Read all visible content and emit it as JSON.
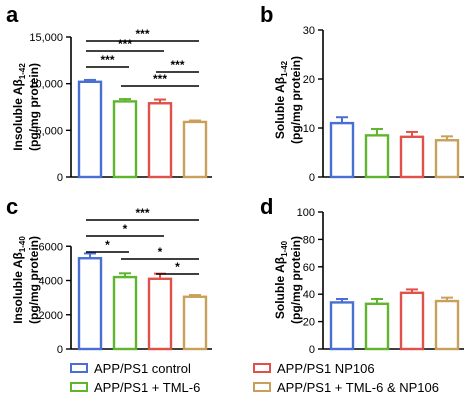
{
  "chart_data": [
    {
      "panel": "a",
      "type": "bar",
      "ylabel_line1_pre": "Insoluble Aβ",
      "ylabel_line1_sub": "1-42",
      "ylabel_line2": "(pg/mg protein)",
      "ylim": [
        0,
        15000
      ],
      "yticks": [
        "0",
        "5,000",
        "10,000",
        "15,000"
      ],
      "ytick_values": [
        0,
        5000,
        10000,
        15000
      ],
      "values": [
        10200,
        8100,
        7900,
        5900
      ],
      "errors": [
        200,
        250,
        400,
        150
      ],
      "significance": [
        {
          "from": 0,
          "to": 3,
          "label": "***"
        },
        {
          "from": 0,
          "to": 2,
          "label": "***"
        },
        {
          "from": 0,
          "to": 1,
          "label": "***"
        },
        {
          "from": 1,
          "to": 3,
          "label": "***"
        },
        {
          "from": 2,
          "to": 3,
          "label": "***"
        }
      ]
    },
    {
      "panel": "b",
      "type": "bar",
      "ylabel_line1_pre": "Soluble Aβ",
      "ylabel_line1_sub": "1-42",
      "ylabel_line2": "(pg/mg protein)",
      "ylim": [
        0,
        30
      ],
      "yticks": [
        "0",
        "10",
        "20",
        "30"
      ],
      "ytick_values": [
        0,
        10,
        20,
        30
      ],
      "values": [
        11,
        8.5,
        8.2,
        7.5
      ],
      "errors": [
        1.2,
        1.3,
        1.0,
        0.8
      ],
      "significance": []
    },
    {
      "panel": "c",
      "type": "bar",
      "ylabel_line1_pre": "Insoluble Aβ",
      "ylabel_line1_sub": "1-40",
      "ylabel_line2": "(pg/mg protein)",
      "ylim": [
        0,
        8000
      ],
      "yticks": [
        "0",
        "2000",
        "4000",
        "6000"
      ],
      "ytick_values": [
        0,
        2000,
        4000,
        6000
      ],
      "values": [
        5300,
        4200,
        4100,
        3050
      ],
      "errors": [
        280,
        220,
        300,
        100
      ],
      "significance": [
        {
          "from": 0,
          "to": 3,
          "label": "***"
        },
        {
          "from": 0,
          "to": 2,
          "label": "*"
        },
        {
          "from": 0,
          "to": 1,
          "label": "*"
        },
        {
          "from": 1,
          "to": 3,
          "label": "*"
        },
        {
          "from": 2,
          "to": 3,
          "label": "*"
        }
      ]
    },
    {
      "panel": "d",
      "type": "bar",
      "ylabel_line1_pre": "Soluble Aβ",
      "ylabel_line1_sub": "1-40",
      "ylabel_line2": "(pg/mg protein)",
      "ylim": [
        0,
        100
      ],
      "yticks": [
        "0",
        "20",
        "40",
        "60",
        "80",
        "100"
      ],
      "ytick_values": [
        0,
        20,
        40,
        60,
        80,
        100
      ],
      "values": [
        34,
        33,
        41,
        35
      ],
      "errors": [
        2.5,
        3.5,
        2.5,
        2.5
      ],
      "significance": []
    }
  ],
  "legend": [
    {
      "label": "APP/PS1 control",
      "color": "#4a6fd4"
    },
    {
      "label": "APP/PS1 + TML-6",
      "color": "#5fb52e"
    },
    {
      "label": "APP/PS1 NP106",
      "color": "#e0514a"
    },
    {
      "label": "APP/PS1 + TML-6 & NP106",
      "color": "#c9a05a"
    }
  ]
}
